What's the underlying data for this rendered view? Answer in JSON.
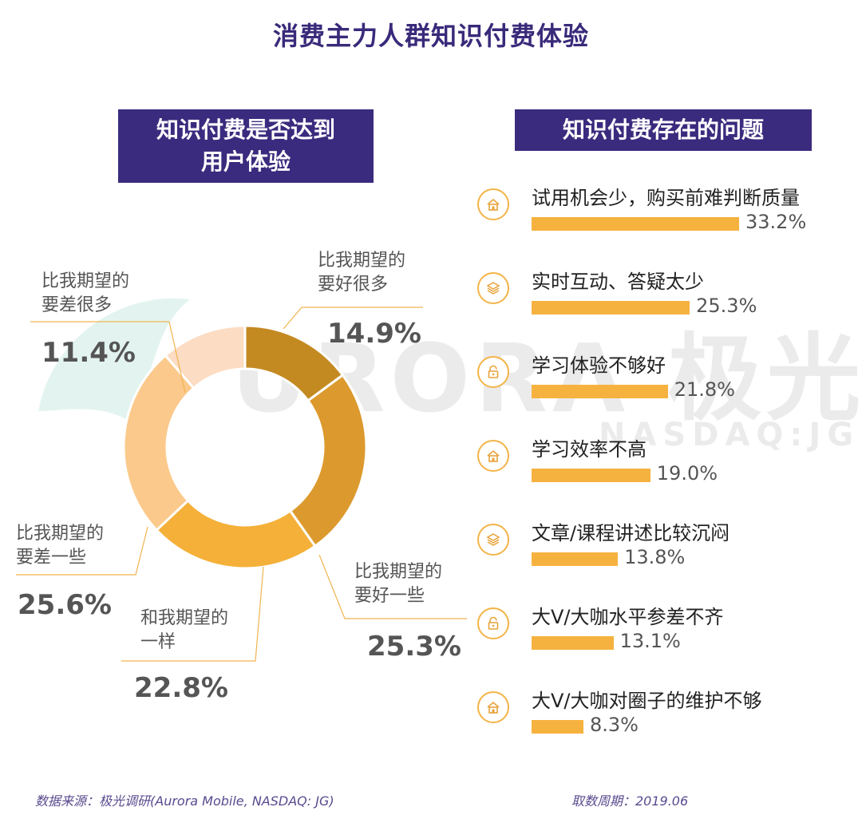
{
  "title": "消费主力人群知识付费体验",
  "watermark": {
    "brand": "URORA 极光",
    "ticker": "NASDAQ:JG"
  },
  "left_panel": {
    "header": "知识付费是否达到\n用户体验"
  },
  "right_panel": {
    "header": "知识付费存在的问题"
  },
  "colors": {
    "header_bg": "#3b2b7e",
    "bar": "#f6b23f",
    "slice_much_better": "#c48a22",
    "slice_better": "#dc9a2e",
    "slice_same": "#f4b038",
    "slice_worse": "#fbc98b",
    "slice_much_worse": "#fcdcc2"
  },
  "chart_data": [
    {
      "type": "pie",
      "donut": true,
      "slices": [
        {
          "label": "比我期望的\n要好很多",
          "value": 14.9,
          "display": "14.9%"
        },
        {
          "label": "比我期望的\n要好一些",
          "value": 25.3,
          "display": "25.3%"
        },
        {
          "label": "和我期望的\n一样",
          "value": 22.8,
          "display": "22.8%"
        },
        {
          "label": "比我期望的\n要差一些",
          "value": 25.6,
          "display": "25.6%"
        },
        {
          "label": "比我期望的\n要差很多",
          "value": 11.4,
          "display": "11.4%"
        }
      ]
    },
    {
      "type": "bar",
      "orientation": "horizontal",
      "categories": [
        "试用机会少，购买前难判断质量",
        "实时互动、答疑太少",
        "学习体验不够好",
        "学习效率不高",
        "文章/课程讲述比较沉闷",
        "大V/大咖水平参差不齐",
        "大V/大咖对圈子的维护不够"
      ],
      "values": [
        33.2,
        25.3,
        21.8,
        19.0,
        13.8,
        13.1,
        8.3
      ],
      "display": [
        "33.2%",
        "25.3%",
        "21.8%",
        "19.0%",
        "13.8%",
        "13.1%",
        "8.3%"
      ],
      "icons": [
        "house-icon",
        "layers-icon",
        "lock-icon",
        "house-icon",
        "layers-icon",
        "lock-icon",
        "house-icon"
      ]
    }
  ],
  "footer": {
    "source": "数据来源：极光调研(Aurora Mobile, NASDAQ: JG)",
    "period": "取数周期：2019.06"
  }
}
